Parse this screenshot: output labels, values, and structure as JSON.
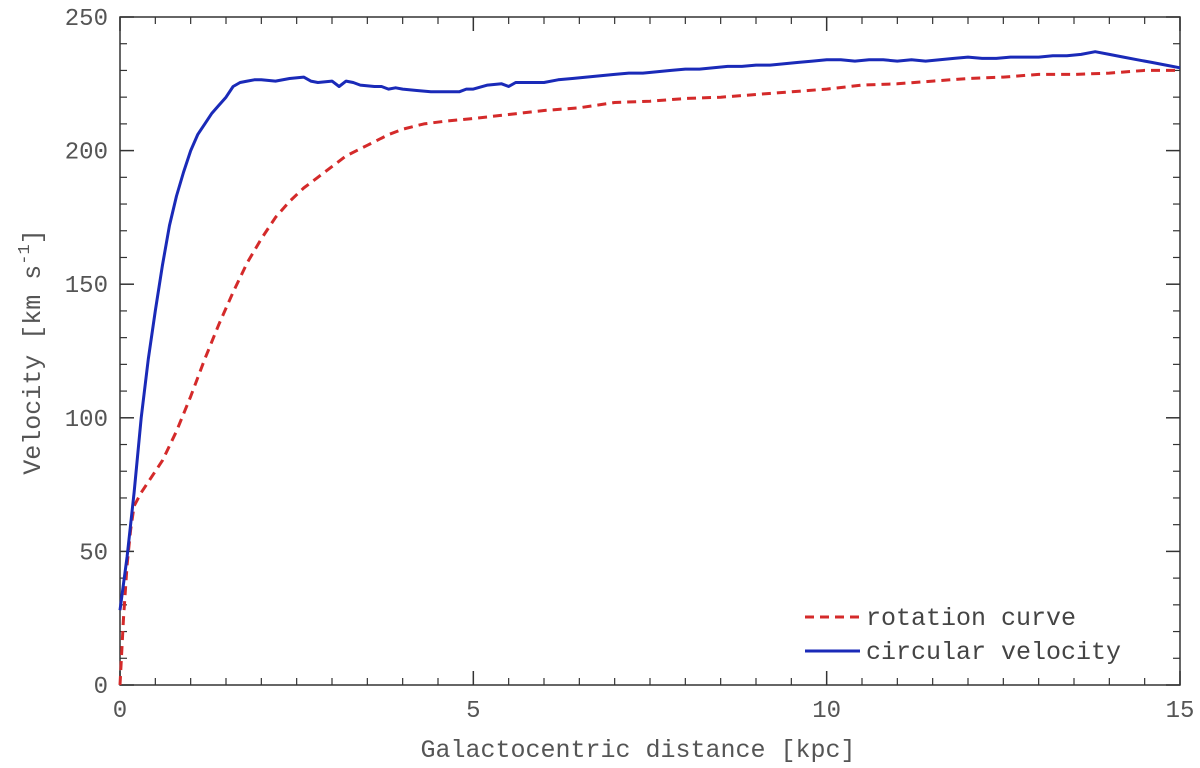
{
  "chart_data": {
    "type": "line",
    "title": "",
    "xlabel": "Galactocentric distance [kpc]",
    "ylabel": "Velocity [km s-1]",
    "ylabel_parts": {
      "main": "Velocity [km s",
      "sup": "-1",
      "tail": "]"
    },
    "xlim": [
      0,
      15
    ],
    "ylim": [
      0,
      250
    ],
    "x_ticks": [
      0,
      5,
      10,
      15
    ],
    "y_ticks": [
      0,
      50,
      100,
      150,
      200,
      250
    ],
    "x_minor_step": 0.5,
    "y_minor_step": 10,
    "grid": false,
    "legend_position": "bottom-right",
    "series": [
      {
        "name": "rotation curve",
        "color": "#d42a2a",
        "style": "dashed",
        "x": [
          0,
          0.05,
          0.1,
          0.15,
          0.2,
          0.3,
          0.4,
          0.6,
          0.8,
          1.0,
          1.2,
          1.4,
          1.6,
          1.8,
          2.0,
          2.2,
          2.4,
          2.6,
          2.8,
          3.0,
          3.2,
          3.5,
          3.8,
          4.0,
          4.3,
          4.6,
          5.0,
          5.5,
          6.0,
          6.5,
          7.0,
          7.5,
          8.0,
          8.5,
          9.0,
          9.5,
          10.0,
          10.5,
          11.0,
          11.5,
          12.0,
          12.5,
          13.0,
          13.5,
          14.0,
          14.5,
          15.0
        ],
        "y": [
          0,
          25,
          45,
          58,
          67,
          72,
          76,
          84,
          95,
          108,
          122,
          135,
          147,
          158,
          167,
          175,
          181,
          186,
          190,
          194,
          198,
          202,
          206,
          208,
          210,
          211,
          212,
          213.5,
          215,
          216,
          218,
          218.5,
          219.5,
          220,
          221,
          222,
          223,
          224.5,
          225,
          226,
          227,
          227.5,
          228.5,
          228.5,
          229,
          230,
          230
        ]
      },
      {
        "name": "circular velocity",
        "color": "#1a2ab8",
        "style": "solid",
        "x": [
          0,
          0.1,
          0.2,
          0.3,
          0.4,
          0.5,
          0.6,
          0.7,
          0.8,
          0.9,
          1.0,
          1.1,
          1.2,
          1.3,
          1.4,
          1.5,
          1.6,
          1.7,
          1.8,
          1.9,
          2.0,
          2.2,
          2.4,
          2.6,
          2.7,
          2.8,
          3.0,
          3.1,
          3.2,
          3.3,
          3.4,
          3.6,
          3.7,
          3.8,
          3.9,
          4.0,
          4.2,
          4.4,
          4.6,
          4.8,
          4.9,
          5.0,
          5.2,
          5.4,
          5.5,
          5.6,
          5.8,
          6.0,
          6.2,
          6.4,
          6.6,
          6.8,
          7.0,
          7.2,
          7.4,
          7.6,
          7.8,
          8.0,
          8.2,
          8.4,
          8.6,
          8.8,
          9.0,
          9.2,
          9.4,
          9.6,
          9.8,
          10.0,
          10.2,
          10.4,
          10.6,
          10.8,
          11.0,
          11.2,
          11.4,
          11.6,
          11.8,
          12.0,
          12.2,
          12.4,
          12.6,
          12.8,
          13.0,
          13.2,
          13.4,
          13.6,
          13.8,
          14.0,
          14.2,
          14.4,
          14.6,
          14.8,
          15.0
        ],
        "y": [
          28,
          48,
          72,
          100,
          122,
          140,
          157,
          172,
          183,
          192,
          200,
          206,
          210,
          214,
          217,
          220,
          224,
          225.5,
          226,
          226.5,
          226.5,
          226,
          227,
          227.5,
          226,
          225.5,
          226,
          224,
          226,
          225.5,
          224.5,
          224,
          224,
          223,
          223.5,
          223,
          222.5,
          222,
          222,
          222,
          223,
          223,
          224.5,
          225,
          224,
          225.5,
          225.5,
          225.5,
          226.5,
          227,
          227.5,
          228,
          228.5,
          229,
          229,
          229.5,
          230,
          230.5,
          230.5,
          231,
          231.5,
          231.5,
          232,
          232,
          232.5,
          233,
          233.5,
          234,
          234,
          233.5,
          234,
          234,
          233.5,
          234,
          233.5,
          234,
          234.5,
          235,
          234.5,
          234.5,
          235,
          235,
          235,
          235.5,
          235.5,
          236,
          237,
          236,
          235,
          234,
          233,
          232,
          231
        ]
      }
    ]
  }
}
